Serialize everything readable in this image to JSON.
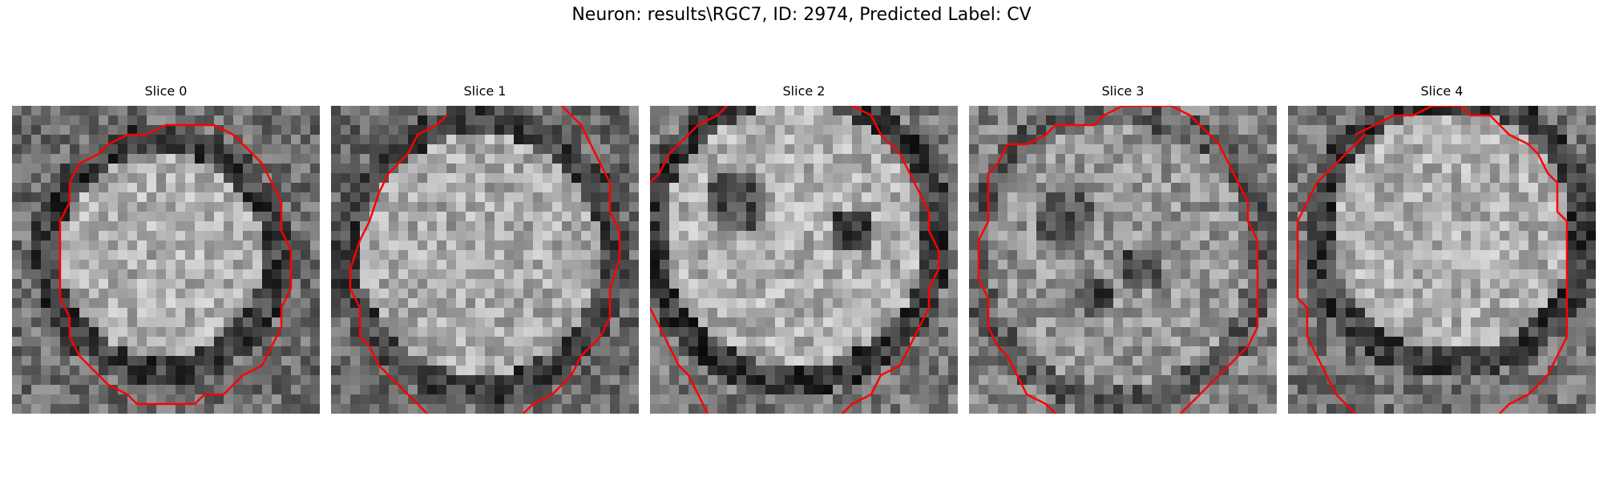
{
  "figure": {
    "suptitle": "Neuron: results\\RGC7, ID: 2974, Predicted Label: CV",
    "contour_color": "#ff0000"
  },
  "slices": [
    {
      "title": "Slice 0"
    },
    {
      "title": "Slice 1"
    },
    {
      "title": "Slice 2"
    },
    {
      "title": "Slice 3"
    },
    {
      "title": "Slice 4"
    }
  ]
}
